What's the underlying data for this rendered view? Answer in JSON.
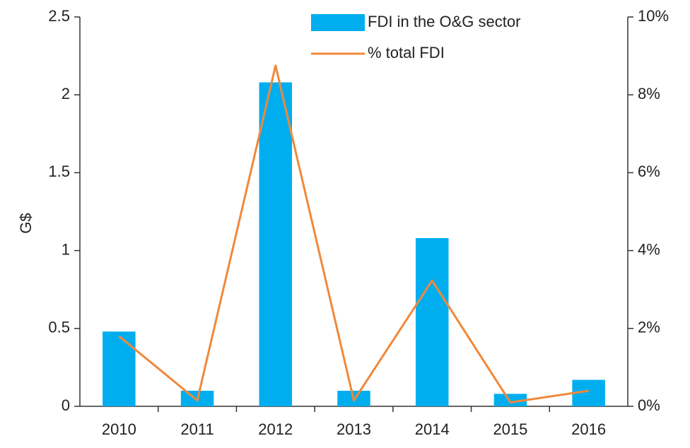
{
  "chart_data": {
    "type": "bar_line",
    "y_label": "G$",
    "categories": [
      "2010",
      "2011",
      "2012",
      "2013",
      "2014",
      "2015",
      "2016"
    ],
    "series": [
      {
        "name": "FDI in the O&G sector",
        "type": "bar",
        "color": "#00aeef",
        "values": [
          0.48,
          0.1,
          2.08,
          0.1,
          1.08,
          0.08,
          0.17
        ]
      },
      {
        "name": "% total FDI",
        "type": "line",
        "axis": "y2",
        "color": "#f0883a",
        "values": [
          1.8,
          0.15,
          8.75,
          0.15,
          3.23,
          0.1,
          0.4
        ]
      }
    ],
    "ylim": [
      0,
      2.5
    ],
    "yticks": [
      0,
      0.5,
      1,
      1.5,
      2,
      2.5
    ],
    "y2lim": [
      0,
      10
    ],
    "y2ticks": [
      {
        "value": 0,
        "label": "0%"
      },
      {
        "value": 2,
        "label": "2%"
      },
      {
        "value": 4,
        "label": "4%"
      },
      {
        "value": 6,
        "label": "6%"
      },
      {
        "value": 8,
        "label": "8%"
      },
      {
        "value": 10,
        "label": "10%"
      }
    ],
    "grid": false,
    "legend": "top"
  }
}
